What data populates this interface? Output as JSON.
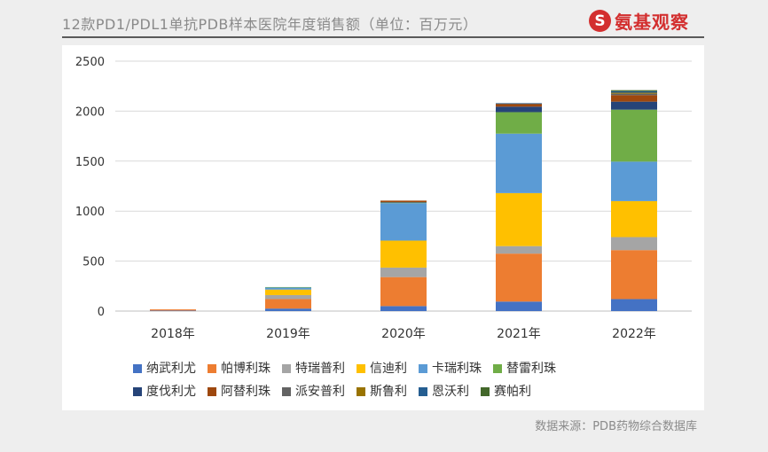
{
  "header": {
    "title": "12款PD1/PDL1单抗PDB样本医院年度销售额（单位：百万元）",
    "logo_mark": "S",
    "logo_text": "氨基观察"
  },
  "source": "数据来源：PDB药物综合数据库",
  "chart_data": {
    "type": "bar",
    "stacked": true,
    "categories": [
      "2018年",
      "2019年",
      "2020年",
      "2021年",
      "2022年"
    ],
    "ylim": [
      0,
      2500
    ],
    "yticks": [
      0,
      500,
      1000,
      1500,
      2000,
      2500
    ],
    "grid": true,
    "legend_position": "bottom",
    "series": [
      {
        "name": "纳武利尤",
        "color": "#4472C4",
        "values": [
          5,
          25,
          50,
          95,
          120
        ]
      },
      {
        "name": "帕博利珠",
        "color": "#ED7D31",
        "values": [
          12,
          95,
          290,
          480,
          490
        ]
      },
      {
        "name": "特瑞普利",
        "color": "#A5A5A5",
        "values": [
          0,
          40,
          95,
          75,
          130
        ]
      },
      {
        "name": "信迪利",
        "color": "#FFC000",
        "values": [
          0,
          55,
          270,
          530,
          360
        ]
      },
      {
        "name": "卡瑞利珠",
        "color": "#5B9BD5",
        "values": [
          0,
          20,
          375,
          595,
          395
        ]
      },
      {
        "name": "替雷利珠",
        "color": "#70AD47",
        "values": [
          0,
          5,
          5,
          215,
          520
        ]
      },
      {
        "name": "度伐利尤",
        "color": "#264478",
        "values": [
          0,
          0,
          5,
          55,
          80
        ]
      },
      {
        "name": "阿替利珠",
        "color": "#9E480E",
        "values": [
          0,
          0,
          15,
          25,
          65
        ]
      },
      {
        "name": "派安普利",
        "color": "#636363",
        "values": [
          0,
          0,
          0,
          5,
          15
        ]
      },
      {
        "name": "斯鲁利",
        "color": "#997300",
        "values": [
          0,
          0,
          0,
          0,
          10
        ]
      },
      {
        "name": "恩沃利",
        "color": "#255E91",
        "values": [
          0,
          0,
          0,
          5,
          15
        ]
      },
      {
        "name": "赛帕利",
        "color": "#43682B",
        "values": [
          0,
          0,
          0,
          0,
          10
        ]
      }
    ]
  }
}
